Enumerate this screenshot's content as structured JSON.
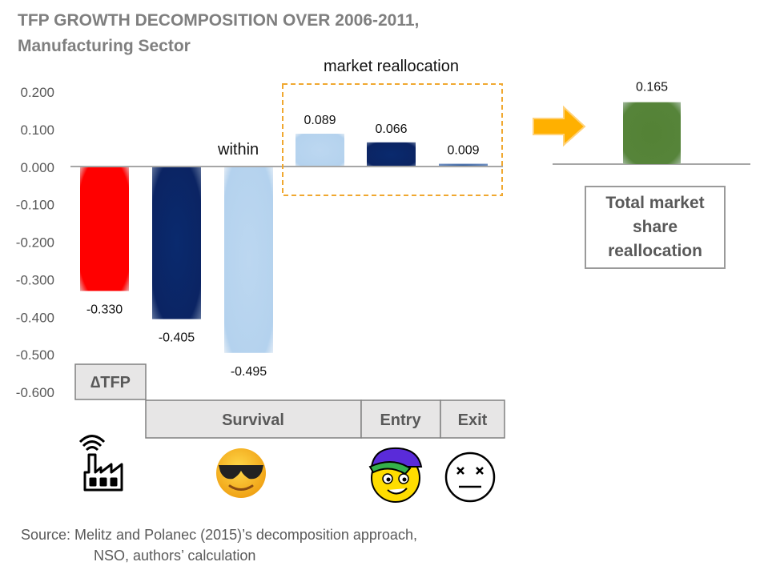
{
  "title_line1": "TFP GROWTH DECOMPOSITION OVER 2006-2011,",
  "title_line2": "Manufacturing Sector",
  "chart_data": {
    "type": "bar",
    "ylim": [
      -0.6,
      0.2
    ],
    "yticks": [
      0.2,
      0.1,
      0.0,
      -0.1,
      -0.2,
      -0.3,
      -0.4,
      -0.5,
      -0.6
    ],
    "ytick_labels": [
      "0.200",
      "0.100",
      "0.000",
      "-0.100",
      "-0.200",
      "-0.300",
      "-0.400",
      "-0.500",
      "-0.600"
    ],
    "bars": [
      {
        "id": "dtfp",
        "value": -0.33,
        "label": "-0.330",
        "color": "#ff0000"
      },
      {
        "id": "survival-dark",
        "value": -0.405,
        "label": "-0.405",
        "color": "#0b2463"
      },
      {
        "id": "survival-within",
        "value": -0.495,
        "label": "-0.495",
        "color": "#b4d2ee"
      },
      {
        "id": "survival-realloc",
        "value": 0.089,
        "label": "0.089",
        "color": "#b4d2ee"
      },
      {
        "id": "entry",
        "value": 0.066,
        "label": "0.066",
        "color": "#0b2463"
      },
      {
        "id": "exit",
        "value": 0.009,
        "label": "0.009",
        "color": "#2f5b9a"
      }
    ],
    "total_bar": {
      "value": 0.165,
      "label": "0.165",
      "color": "#548235"
    },
    "annotations": {
      "within": "within",
      "market_reallocation": "market reallocation"
    },
    "categories": {
      "dtfp": "∆TFP",
      "survival": "Survival",
      "entry": "Entry",
      "exit": "Exit"
    }
  },
  "total_box": "Total market share reallocation",
  "source_line1": "Source: Melitz and Polanec (2015)’s decomposition approach,",
  "source_line2": "NSO, authors’ calculation",
  "icons": [
    "factory-icon",
    "sunglasses-face-icon",
    "cap-face-icon",
    "dizzy-face-icon",
    "right-arrow-icon"
  ]
}
